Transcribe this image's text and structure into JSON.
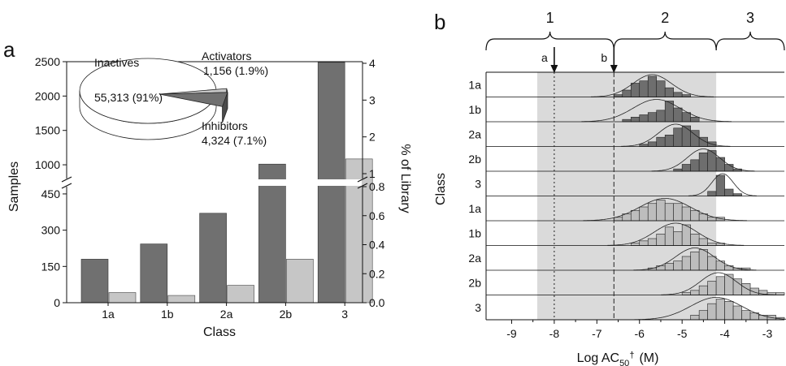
{
  "panel_a_label": "a",
  "panel_b_label": "b",
  "colors": {
    "samples": "#707070",
    "library": "#c6c6c6",
    "hist_upper": "#6e6e6e",
    "hist_lower": "#bdbdbd",
    "shade": "#dadada",
    "line": "#111111"
  },
  "chart_data": [
    {
      "type": "bar",
      "panel": "a",
      "categories": [
        "1a",
        "1b",
        "2a",
        "2b",
        "3"
      ],
      "series": [
        {
          "values": [
            180,
            243,
            370,
            1010,
            2490
          ]
        },
        {
          "values": [
            0.07,
            0.05,
            0.12,
            0.3,
            1.4
          ]
        }
      ],
      "xlabel": "Class",
      "ylabel": "Samples",
      "y2label": "% of Library",
      "y_axis_break": true,
      "ylim_lower": [
        0,
        480
      ],
      "ylim_upper": [
        800,
        2500
      ],
      "y_ticks_lower": [
        "0",
        "150",
        "300",
        "450"
      ],
      "y_ticks_upper": [
        "1000",
        "1500",
        "2000",
        "2500"
      ],
      "y2_ticks_lower": [
        "0.0",
        "0.2",
        "0.4",
        "0.6",
        "0.8"
      ],
      "y2_ticks_upper": [
        "1",
        "2",
        "3",
        "4"
      ]
    },
    {
      "type": "pie",
      "panel": "a-inset",
      "slices": [
        {
          "label": "Inactives",
          "value_text": "55,313 (91%)",
          "value": 55313
        },
        {
          "label": "Activators",
          "value_text": "1,156 (1.9%)",
          "value": 1156
        },
        {
          "label": "Inhibitors",
          "value_text": "4,324 (7.1%)",
          "value": 4324
        }
      ]
    },
    {
      "type": "bar",
      "subtype": "histogram",
      "panel": "b",
      "xlabel_main": "Log AC",
      "xlabel_sub": "50",
      "xlabel_super": "†",
      "xlabel_unit": "(M)",
      "ylabel": "Class",
      "xlim": [
        -9.6,
        -2.6
      ],
      "x_ticks": [
        -9,
        -8,
        -7,
        -6,
        -5,
        -4,
        -3
      ],
      "x_tick_labels": [
        "-9",
        "-8",
        "-7",
        "-6",
        "-5",
        "-4",
        "-3"
      ],
      "bin_width": 0.2,
      "shaded_region": [
        -8.4,
        -4.2
      ],
      "markers": [
        {
          "label": "a",
          "x": -8.0,
          "line": "dotted"
        },
        {
          "label": "b",
          "x": -6.6,
          "line": "dashed"
        }
      ],
      "brackets": [
        {
          "label": "1",
          "range": [
            -9.6,
            -6.6
          ]
        },
        {
          "label": "2",
          "range": [
            -6.6,
            -4.2
          ]
        },
        {
          "label": "3",
          "range": [
            -4.2,
            -2.6
          ]
        }
      ],
      "rows": [
        {
          "label": "1a",
          "group": "upper",
          "bin_start": -6.6,
          "counts": [
            1,
            3,
            6,
            7,
            9,
            7,
            4,
            2,
            1
          ],
          "fit_mean": -5.7,
          "fit_sd": 0.45
        },
        {
          "label": "1b",
          "group": "upper",
          "bin_start": -6.4,
          "counts": [
            1,
            2,
            3,
            4,
            5,
            9,
            6,
            4,
            2
          ],
          "fit_mean": -5.6,
          "fit_sd": 0.55
        },
        {
          "label": "2a",
          "group": "upper",
          "bin_start": -6.0,
          "counts": [
            1,
            2,
            4,
            5,
            8,
            9,
            7,
            4,
            2
          ],
          "fit_mean": -5.15,
          "fit_sd": 0.4
        },
        {
          "label": "2b",
          "group": "upper",
          "bin_start": -5.2,
          "counts": [
            1,
            3,
            5,
            8,
            9,
            6,
            3,
            1
          ],
          "fit_mean": -4.5,
          "fit_sd": 0.38
        },
        {
          "label": "3",
          "group": "upper",
          "bin_start": -4.4,
          "counts": [
            2,
            9,
            3,
            1
          ],
          "fit_mean": -4.05,
          "fit_sd": 0.25
        },
        {
          "label": "1a",
          "group": "lower",
          "bin_start": -6.6,
          "counts": [
            1,
            2,
            3,
            4,
            5,
            6,
            5,
            5,
            4,
            3,
            2,
            1,
            1
          ],
          "fit_mean": -5.4,
          "fit_sd": 0.6
        },
        {
          "label": "1b",
          "group": "lower",
          "bin_start": -6.2,
          "counts": [
            1,
            2,
            3,
            5,
            8,
            6,
            9,
            5,
            3,
            1,
            1
          ],
          "fit_mean": -5.15,
          "fit_sd": 0.5
        },
        {
          "label": "2a",
          "group": "lower",
          "bin_start": -5.8,
          "counts": [
            1,
            2,
            3,
            4,
            6,
            8,
            9,
            6,
            4,
            2,
            1,
            1
          ],
          "fit_mean": -4.7,
          "fit_sd": 0.45
        },
        {
          "label": "2b",
          "group": "lower",
          "bin_start": -5.0,
          "counts": [
            1,
            2,
            4,
            6,
            8,
            9,
            7,
            5,
            3,
            2,
            1,
            1
          ],
          "fit_mean": -4.15,
          "fit_sd": 0.42
        },
        {
          "label": "3",
          "group": "lower",
          "bin_start": -4.8,
          "counts": [
            2,
            4,
            7,
            9,
            8,
            6,
            4,
            3,
            2,
            2,
            1
          ],
          "fit_mean": -4.2,
          "fit_sd": 0.6
        }
      ]
    }
  ]
}
